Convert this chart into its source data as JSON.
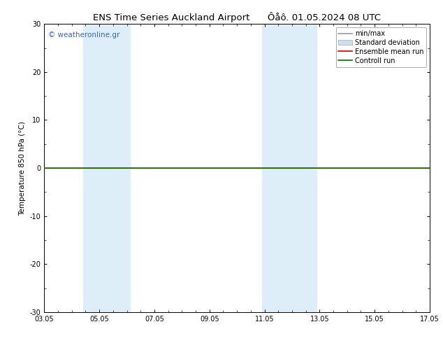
{
  "title": "ENS Time Series Auckland Airport      Ôåô. 01.05.2024 08 UTC",
  "ylabel": "Temperature 850 hPa (°C)",
  "xlabel": "",
  "ylim": [
    -30,
    30
  ],
  "yticks": [
    -30,
    -20,
    -10,
    0,
    10,
    20,
    30
  ],
  "xtick_labels": [
    "03.05",
    "05.05",
    "07.05",
    "09.05",
    "11.05",
    "13.05",
    "15.05",
    "17.05"
  ],
  "xtick_positions": [
    0,
    2,
    4,
    6,
    8,
    10,
    12,
    14
  ],
  "shaded_regions": [
    {
      "x_start": 1.4,
      "x_end": 3.1,
      "color": "#ddeef8"
    },
    {
      "x_start": 7.9,
      "x_end": 9.9,
      "color": "#ddeef8"
    }
  ],
  "flat_line_y": 0.0,
  "flat_line_color_green": "#007700",
  "flat_line_color_red": "#cc0000",
  "watermark_text": "© weatheronline.gr",
  "watermark_color": "#3366cc",
  "bg_color": "#ffffff",
  "plot_bg_color": "#ffffff",
  "legend_items": [
    {
      "label": "min/max",
      "color": "#999999",
      "lw": 1.2,
      "linestyle": "-",
      "type": "line"
    },
    {
      "label": "Standard deviation",
      "color": "#cce0f0",
      "lw": 8,
      "linestyle": "-",
      "type": "patch"
    },
    {
      "label": "Ensemble mean run",
      "color": "#cc0000",
      "lw": 1.2,
      "linestyle": "-",
      "type": "line"
    },
    {
      "label": "Controll run",
      "color": "#007700",
      "lw": 1.2,
      "linestyle": "-",
      "type": "line"
    }
  ],
  "title_fontsize": 9.5,
  "axis_label_fontsize": 7.5,
  "tick_fontsize": 7,
  "legend_fontsize": 7,
  "watermark_fontsize": 7.5
}
